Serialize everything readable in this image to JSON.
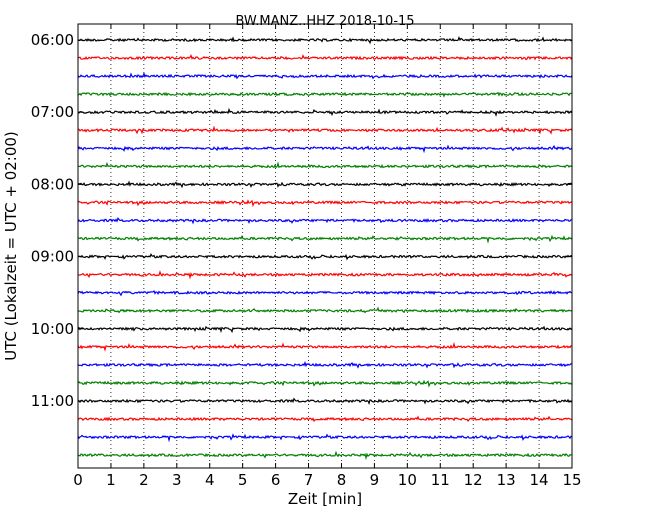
{
  "chart_data": {
    "type": "line",
    "title": "BW.MANZ..HHZ 2018-10-15",
    "xlabel": "Zeit  [min]",
    "ylabel": "UTC (Lokalzeit = UTC + 02:00)",
    "xlim": [
      0,
      15
    ],
    "x_ticks": [
      "0",
      "1",
      "2",
      "3",
      "4",
      "5",
      "6",
      "7",
      "8",
      "9",
      "10",
      "11",
      "12",
      "13",
      "14",
      "15"
    ],
    "y_ticks": [
      "06:00",
      "07:00",
      "08:00",
      "09:00",
      "10:00",
      "11:00"
    ],
    "trace_interval_min": 15,
    "first_trace": "06:00",
    "trace_count": 24,
    "colors": [
      "#000000",
      "#ff0000",
      "#0000ff",
      "#008000"
    ],
    "grid": "vertical dotted",
    "annotation_events": [
      {
        "trace": "09:45",
        "x_min": 13.6,
        "amplitude": "small spike"
      },
      {
        "trace": "11:15",
        "x_min": 13.5,
        "amplitude": "small spike"
      },
      {
        "trace": "06:45",
        "x_min": 10.6,
        "amplitude": "small spike"
      }
    ]
  }
}
